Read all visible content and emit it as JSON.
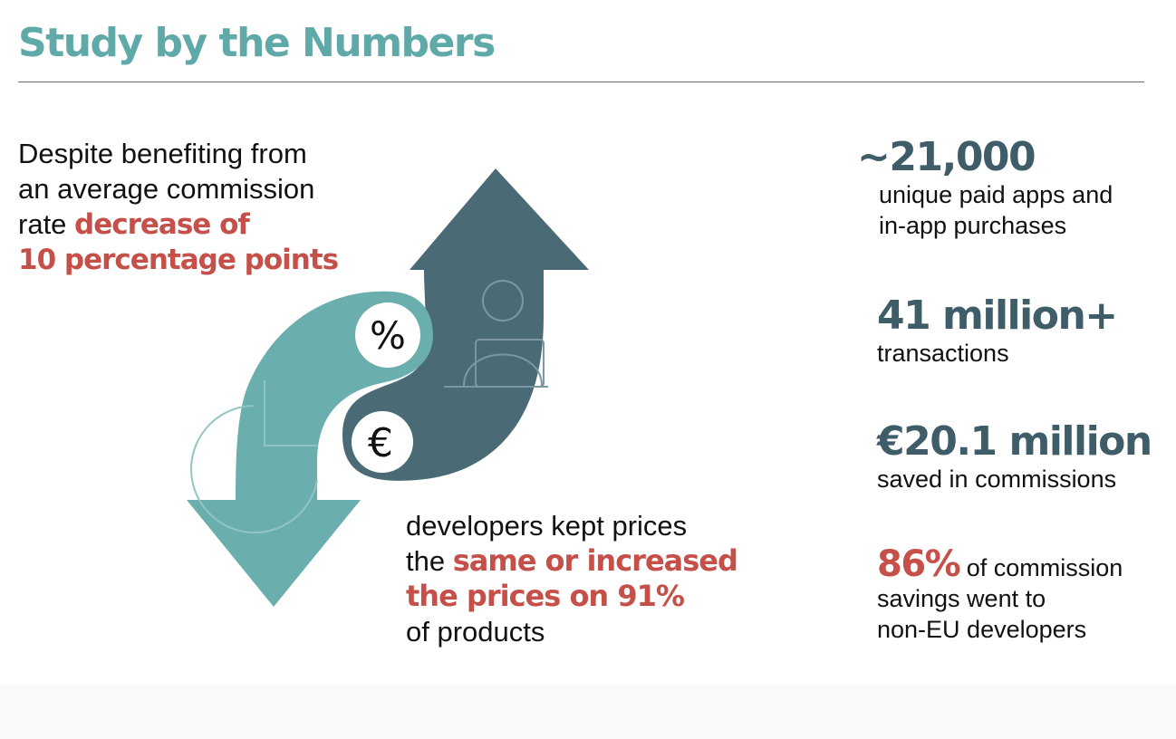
{
  "header": {
    "title": "Study by the Numbers"
  },
  "intro": {
    "line1": "Despite benefiting from",
    "line2": "an average commission",
    "line3_prefix": "rate ",
    "highlight_1": "decrease of",
    "highlight_2": "10 percentage points"
  },
  "outro": {
    "line1": "developers kept prices",
    "line2_prefix": "the ",
    "highlight_1": "same or increased",
    "highlight_2": "the prices on 91%",
    "line4": "of products"
  },
  "graphic": {
    "percent_symbol": "%",
    "euro_symbol": "€",
    "icons": [
      "arrow-down-teal",
      "arrow-up-slate",
      "percent-icon",
      "euro-icon",
      "person-laptop-icon",
      "pie-chart-icon"
    ]
  },
  "stats": [
    {
      "value": "~21,000",
      "label_line1": "unique paid apps and",
      "label_line2": "in-app purchases"
    },
    {
      "value": "41 million+",
      "label_line1": "transactions"
    },
    {
      "value": "€20.1 million",
      "label_line1": "saved in commissions"
    },
    {
      "value": "86%",
      "label_suffix": " of commission",
      "label_line2": "savings went to",
      "label_line3": "non-EU developers"
    }
  ],
  "colors": {
    "title_teal": "#5fa9a9",
    "accent_red": "#c5504a",
    "stat_slate": "#3f5d68",
    "arrow_teal": "#6aaeae",
    "arrow_slate": "#4a6b75"
  }
}
